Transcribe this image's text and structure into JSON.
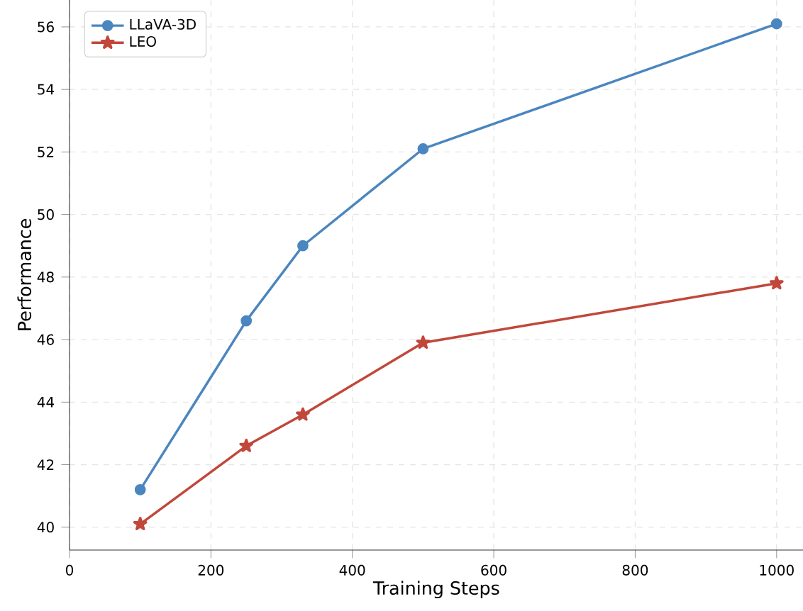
{
  "chart_data": {
    "type": "line",
    "xlabel": "Training Steps",
    "ylabel": "Performance",
    "x": [
      100,
      250,
      330,
      500,
      1000
    ],
    "series": [
      {
        "name": "LLaVA-3D",
        "color": "#4a86bf",
        "marker": "circle",
        "values": [
          41.2,
          46.6,
          49.0,
          52.1,
          56.1
        ]
      },
      {
        "name": "LEO",
        "color": "#c1473a",
        "marker": "star",
        "values": [
          40.1,
          42.6,
          43.6,
          45.9,
          47.8
        ]
      }
    ],
    "xlim": [
      0,
      1038
    ],
    "ylim": [
      39.27,
      56.86
    ],
    "xticks": [
      0,
      200,
      400,
      600,
      800,
      1000
    ],
    "yticks": [
      40,
      42,
      44,
      46,
      48,
      50,
      52,
      54,
      56
    ],
    "grid": true,
    "legend": "top left",
    "line_style": "solid"
  }
}
